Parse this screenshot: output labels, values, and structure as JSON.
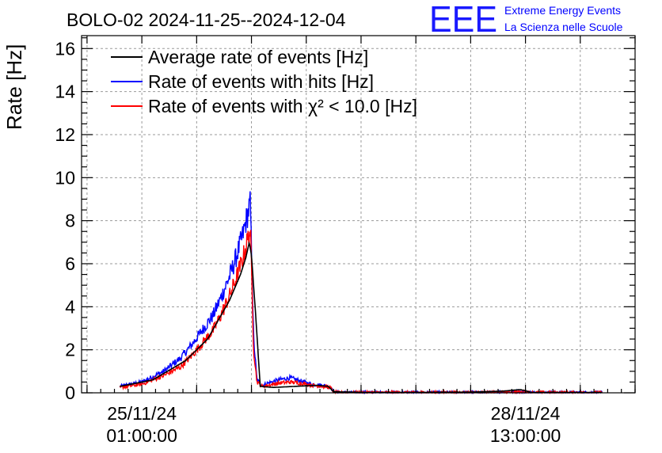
{
  "header": {
    "title": "BOLO-02 2024-11-25--2024-12-04",
    "logo_text": "EEE",
    "logo_line1": "Extreme Energy Events",
    "logo_line2": "La Scienza nelle Scuole"
  },
  "colors": {
    "average": "#000000",
    "hits": "#0000ff",
    "chi2": "#ff0000",
    "logo": "#1a1aff"
  },
  "chart_data": {
    "type": "line",
    "ylabel": "Rate [Hz]",
    "ylim": [
      0,
      16.6
    ],
    "xlim": [
      -0.55,
      4.5
    ],
    "x_unit": "days since 25/11/24 01:00:00",
    "yticks": [
      0,
      2,
      4,
      6,
      8,
      10,
      12,
      14,
      16
    ],
    "xticks": [
      {
        "x": 0.0,
        "line1": "25/11/24",
        "line2": "01:00:00"
      },
      {
        "x": 3.5,
        "line1": "28/11/24",
        "line2": "13:00:00"
      }
    ],
    "grid": true,
    "legend_position": "top-left",
    "legend": [
      {
        "name": "Average rate of events [Hz]",
        "color_key": "average"
      },
      {
        "name": "Rate of events with hits [Hz]",
        "color_key": "hits"
      },
      {
        "name": "Rate of events with χ² < 10.0 [Hz]",
        "color_key": "chi2"
      }
    ],
    "series": [
      {
        "name": "Average rate of events [Hz]",
        "color_key": "average",
        "x": [
          -0.2,
          0.1,
          0.4,
          0.6,
          0.8,
          0.9,
          0.95,
          0.98,
          1.0,
          1.04,
          1.08,
          1.2,
          1.4,
          1.6,
          1.7,
          1.75,
          2.0,
          2.5,
          3.0,
          3.3,
          3.45,
          3.5,
          3.55,
          3.7,
          4.0,
          4.2
        ],
        "y": [
          0.3,
          0.6,
          1.5,
          2.5,
          4.3,
          5.5,
          6.3,
          7.0,
          6.4,
          3.5,
          0.3,
          0.25,
          0.3,
          0.35,
          0.3,
          0.05,
          0.02,
          0.02,
          0.03,
          0.08,
          0.15,
          0.1,
          0.02,
          0.02,
          0.02,
          0.02
        ]
      },
      {
        "name": "Rate of events with hits [Hz]",
        "color_key": "hits",
        "x": [
          -0.2,
          0.0,
          0.2,
          0.35,
          0.45,
          0.55,
          0.65,
          0.72,
          0.8,
          0.86,
          0.92,
          0.96,
          0.99,
          1.02,
          1.05,
          1.1,
          1.15,
          1.25,
          1.35,
          1.45,
          1.55,
          1.65,
          1.72,
          1.75,
          1.8,
          2.2,
          2.7,
          3.1,
          3.4,
          3.6,
          4.0,
          4.2
        ],
        "y": [
          0.3,
          0.5,
          1.0,
          1.6,
          2.2,
          2.9,
          3.6,
          4.4,
          5.4,
          6.3,
          7.3,
          8.2,
          8.8,
          2.5,
          0.6,
          0.35,
          0.45,
          0.6,
          0.7,
          0.55,
          0.4,
          0.35,
          0.3,
          0.05,
          0.02,
          0.02,
          0.02,
          0.02,
          0.05,
          0.02,
          0.02,
          0.02
        ]
      },
      {
        "name": "Rate of events with χ² < 10.0 [Hz]",
        "color_key": "chi2",
        "x": [
          -0.2,
          0.0,
          0.2,
          0.35,
          0.45,
          0.55,
          0.65,
          0.72,
          0.8,
          0.86,
          0.92,
          0.96,
          0.99,
          1.02,
          1.05,
          1.1,
          1.15,
          1.25,
          1.35,
          1.45,
          1.55,
          1.65,
          1.72,
          1.75,
          1.8,
          2.2,
          2.7,
          3.1,
          3.4,
          3.6,
          4.0,
          4.2
        ],
        "y": [
          0.25,
          0.4,
          0.8,
          1.2,
          1.7,
          2.3,
          2.9,
          3.6,
          4.5,
          5.3,
          6.2,
          7.0,
          7.6,
          2.0,
          0.5,
          0.3,
          0.35,
          0.45,
          0.5,
          0.45,
          0.35,
          0.3,
          0.25,
          0.04,
          0.02,
          0.02,
          0.02,
          0.02,
          0.04,
          0.02,
          0.02,
          0.02
        ]
      }
    ]
  }
}
